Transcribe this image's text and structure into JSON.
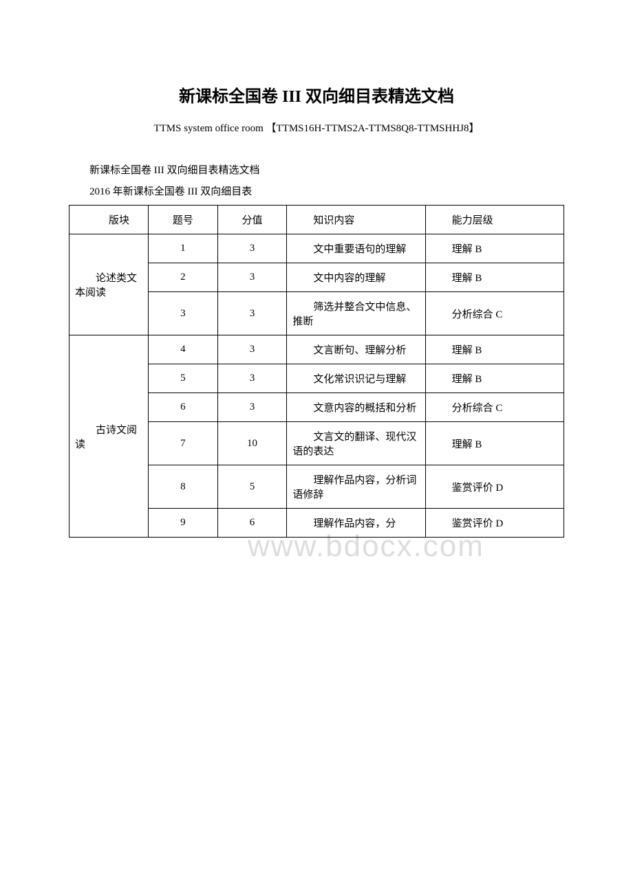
{
  "title": "新课标全国卷 III 双向细目表精选文档",
  "subtitle": "TTMS system office room 【TTMS16H-TTMS2A-TTMS8Q8-TTMSHHJ8】",
  "intro_line1": "新课标全国卷 III 双向细目表精选文档",
  "intro_line2": "2016 年新课标全国卷 III 双向细目表",
  "watermark": "www.bdocx.com",
  "headers": {
    "section": "版块",
    "num": "题号",
    "score": "分值",
    "knowledge": "知识内容",
    "ability": "能力层级"
  },
  "sections": [
    {
      "name": "论述类文本阅读",
      "rows": [
        {
          "num": "1",
          "score": "3",
          "knowledge": "文中重要语句的理解",
          "ability": "理解 B"
        },
        {
          "num": "2",
          "score": "3",
          "knowledge": "文中内容的理解",
          "ability": "理解 B"
        },
        {
          "num": "3",
          "score": "3",
          "knowledge": "筛选并整合文中信息、推断",
          "ability": "分析综合 C"
        }
      ]
    },
    {
      "name": "古诗文阅读",
      "rows": [
        {
          "num": "4",
          "score": "3",
          "knowledge": "文言断句、理解分析",
          "ability": "理解 B"
        },
        {
          "num": "5",
          "score": "3",
          "knowledge": "文化常识识记与理解",
          "ability": "理解 B"
        },
        {
          "num": "6",
          "score": "3",
          "knowledge": "文意内容的概括和分析",
          "ability": "分析综合 C"
        },
        {
          "num": "7",
          "score": "10",
          "knowledge": "文言文的翻译、现代汉语的表达",
          "ability": "理解 B"
        },
        {
          "num": "8",
          "score": "5",
          "knowledge": "理解作品内容，分析词语修辞",
          "ability": "鉴赏评价 D"
        },
        {
          "num": "9",
          "score": "6",
          "knowledge": "理解作品内容，分",
          "ability": "鉴赏评价 D"
        }
      ]
    }
  ]
}
